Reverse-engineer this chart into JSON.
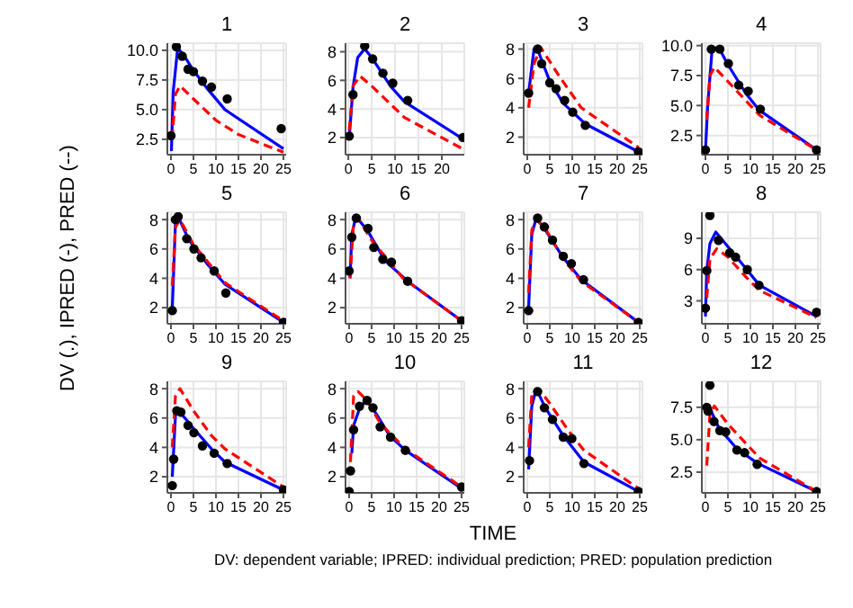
{
  "chart_data": [
    {
      "type": "line",
      "title": "1",
      "ylabel": "DV (.), IPRED (-), PRED (--)",
      "xlim": [
        -0.8,
        25.6
      ],
      "xticks": [
        0,
        5,
        10,
        15,
        20,
        25
      ],
      "ylim": [
        1.2,
        10.6
      ],
      "yticks": [
        {
          "value": 2.5,
          "label": "2.5"
        },
        {
          "value": 5,
          "label": "5.0"
        },
        {
          "value": 7.5,
          "label": "7.5"
        },
        {
          "value": 10,
          "label": "10.0"
        }
      ],
      "grid": true,
      "series": [
        {
          "type": "scatter",
          "color": "#000000",
          "marker": "circle",
          "x": [
            0,
            1.2,
            2.5,
            3.8,
            5,
            7,
            9,
            12.5,
            24.5
          ],
          "values": [
            2.8,
            10.3,
            9.5,
            8.4,
            8.2,
            7.4,
            6.9,
            5.9,
            3.4
          ]
        },
        {
          "color": "#0000ff",
          "line_style": "solid",
          "x": [
            0.1,
            0.5,
            1.5,
            3,
            5,
            8,
            12,
            25
          ],
          "values": [
            1.5,
            6.5,
            10.2,
            9.5,
            8.3,
            6.8,
            5.0,
            1.7
          ]
        },
        {
          "color": "#ff0000",
          "line_style": "dashed",
          "x": [
            0.25,
            1,
            2,
            5,
            10,
            15,
            25
          ],
          "values": [
            2.5,
            6.3,
            7.0,
            5.9,
            4.1,
            2.9,
            1.4
          ]
        }
      ]
    },
    {
      "type": "line",
      "title": "2",
      "xlim": [
        -0.6,
        24.8
      ],
      "xticks": [
        0,
        5,
        10,
        15,
        20
      ],
      "ylim": [
        0.8,
        8.6
      ],
      "yticks": [
        2,
        4,
        6,
        8
      ],
      "grid": true,
      "series": [
        {
          "type": "scatter",
          "color": "#000000",
          "marker": "circle",
          "x": [
            0.2,
            1,
            3.5,
            5.2,
            7.4,
            9.5,
            12.7,
            24.5
          ],
          "values": [
            2.1,
            5.0,
            8.4,
            7.5,
            6.5,
            5.8,
            4.6,
            2.0
          ]
        },
        {
          "color": "#0000ff",
          "line_style": "solid",
          "x": [
            0.2,
            1,
            2,
            3.5,
            5,
            9,
            12,
            24.5
          ],
          "values": [
            2.0,
            5.5,
            7.6,
            8.2,
            7.6,
            5.6,
            4.5,
            1.9
          ]
        },
        {
          "color": "#ff0000",
          "line_style": "dashed",
          "x": [
            0.2,
            1,
            2.5,
            5,
            12,
            24.5
          ],
          "values": [
            2.5,
            5.6,
            6.3,
            5.6,
            3.4,
            1.2
          ]
        }
      ]
    },
    {
      "type": "line",
      "title": "3",
      "xlim": [
        -0.8,
        25.6
      ],
      "xticks": [
        0,
        5,
        10,
        15,
        20,
        25
      ],
      "ylim": [
        0.8,
        8.4
      ],
      "yticks": [
        2,
        4,
        6,
        8
      ],
      "grid": true,
      "series": [
        {
          "type": "scatter",
          "color": "#000000",
          "marker": "circle",
          "x": [
            0.3,
            2.3,
            3.2,
            5,
            6.4,
            8.3,
            10.1,
            12.9,
            24.7
          ],
          "values": [
            5.0,
            8.0,
            7.0,
            5.7,
            5.3,
            4.5,
            3.7,
            2.8,
            1.0
          ]
        },
        {
          "color": "#0000ff",
          "line_style": "solid",
          "x": [
            0.3,
            1.5,
            2.5,
            5,
            8,
            12.9,
            24.7
          ],
          "values": [
            5.0,
            8.0,
            7.8,
            5.8,
            4.3,
            2.9,
            1.0
          ]
        },
        {
          "color": "#ff0000",
          "line_style": "dashed",
          "x": [
            0.3,
            1.5,
            3,
            7,
            12,
            24.7
          ],
          "values": [
            4.0,
            7.0,
            8.1,
            6.2,
            4.0,
            1.3
          ]
        }
      ]
    },
    {
      "type": "line",
      "title": "4",
      "xlim": [
        -0.8,
        25.6
      ],
      "xticks": [
        0,
        5,
        10,
        15,
        20,
        25
      ],
      "ylim": [
        0.9,
        10.2
      ],
      "yticks": [
        {
          "value": 2.5,
          "label": "2.5"
        },
        {
          "value": 5,
          "label": "5.0"
        },
        {
          "value": 7.5,
          "label": "7.5"
        },
        {
          "value": 10,
          "label": "10.0"
        }
      ],
      "grid": true,
      "series": [
        {
          "type": "scatter",
          "color": "#000000",
          "marker": "circle",
          "x": [
            0,
            1.3,
            3.2,
            5.1,
            7.4,
            9.5,
            12.2,
            24.7
          ],
          "values": [
            1.3,
            9.7,
            9.7,
            8.5,
            6.7,
            6.2,
            4.7,
            1.3
          ]
        },
        {
          "color": "#0000ff",
          "line_style": "solid",
          "x": [
            0,
            0.5,
            1.5,
            3,
            5,
            9,
            12,
            24.7
          ],
          "values": [
            1.2,
            5.0,
            9.8,
            9.8,
            8.4,
            6.0,
            4.6,
            1.3
          ]
        },
        {
          "color": "#ff0000",
          "line_style": "dashed",
          "x": [
            0.3,
            1,
            2,
            5,
            12,
            24.7
          ],
          "values": [
            3.8,
            7.5,
            8.2,
            7.0,
            4.2,
            1.3
          ]
        }
      ]
    },
    {
      "type": "line",
      "title": "5",
      "xlim": [
        -0.8,
        25.6
      ],
      "xticks": [
        0,
        5,
        10,
        15,
        20,
        25
      ],
      "ylim": [
        0.9,
        8.5
      ],
      "yticks": [
        2,
        4,
        6,
        8
      ],
      "grid": true,
      "series": [
        {
          "type": "scatter",
          "color": "#000000",
          "marker": "circle",
          "x": [
            0.3,
            1,
            1.6,
            3.5,
            5.1,
            6.7,
            9.6,
            12.2,
            25
          ],
          "values": [
            1.8,
            8.0,
            8.2,
            6.7,
            6.0,
            5.4,
            4.5,
            3.0,
            1.0
          ]
        },
        {
          "color": "#0000ff",
          "line_style": "solid",
          "x": [
            0.3,
            1,
            1.6,
            4,
            8,
            12,
            25
          ],
          "values": [
            2.0,
            7.8,
            8.2,
            6.6,
            5.0,
            3.6,
            1.0
          ]
        },
        {
          "color": "#ff0000",
          "line_style": "dashed",
          "x": [
            0.3,
            1,
            2,
            5,
            12,
            25
          ],
          "values": [
            3.5,
            7.5,
            8.0,
            6.3,
            3.7,
            1.1
          ]
        }
      ]
    },
    {
      "type": "line",
      "title": "6",
      "xlim": [
        -0.8,
        25.6
      ],
      "xticks": [
        0,
        5,
        10,
        15,
        20,
        25
      ],
      "ylim": [
        0.9,
        8.5
      ],
      "yticks": [
        2,
        4,
        6,
        8
      ],
      "grid": true,
      "series": [
        {
          "type": "scatter",
          "color": "#000000",
          "marker": "circle",
          "x": [
            0,
            0.6,
            1.6,
            4.2,
            5.5,
            7.5,
            9.4,
            13,
            25
          ],
          "values": [
            4.5,
            6.8,
            8.1,
            7.4,
            6.1,
            5.3,
            5.1,
            3.8,
            1.1
          ]
        },
        {
          "color": "#0000ff",
          "line_style": "solid",
          "x": [
            0.2,
            0.6,
            1.5,
            4,
            8,
            13,
            25
          ],
          "values": [
            4.0,
            7.0,
            8.2,
            7.3,
            5.2,
            3.8,
            1.1
          ]
        },
        {
          "color": "#ff0000",
          "line_style": "dashed",
          "x": [
            0.2,
            1,
            2,
            5,
            12,
            25
          ],
          "values": [
            4.0,
            7.8,
            8.1,
            6.6,
            4.0,
            1.1
          ]
        }
      ]
    },
    {
      "type": "line",
      "title": "7",
      "xlim": [
        -0.8,
        25.6
      ],
      "xticks": [
        0,
        5,
        10,
        15,
        20,
        25
      ],
      "ylim": [
        0.9,
        8.5
      ],
      "yticks": [
        2,
        4,
        6,
        8
      ],
      "grid": true,
      "series": [
        {
          "type": "scatter",
          "color": "#000000",
          "marker": "circle",
          "x": [
            0.3,
            2.3,
            3.8,
            5.6,
            8,
            9.8,
            12.5,
            24.7
          ],
          "values": [
            1.8,
            8.1,
            7.5,
            6.6,
            5.5,
            5.0,
            3.9,
            1.0
          ]
        },
        {
          "color": "#0000ff",
          "line_style": "solid",
          "x": [
            0.3,
            1,
            2,
            4,
            8,
            12,
            24.7
          ],
          "values": [
            2.0,
            7.0,
            8.1,
            7.3,
            5.4,
            3.9,
            1.0
          ]
        },
        {
          "color": "#ff0000",
          "line_style": "dashed",
          "x": [
            0.3,
            1,
            2,
            4,
            8,
            12,
            24.7
          ],
          "values": [
            3.0,
            7.3,
            8.0,
            7.4,
            5.3,
            3.8,
            1.0
          ]
        }
      ]
    },
    {
      "type": "line",
      "title": "8",
      "xlim": [
        -0.8,
        25.6
      ],
      "xticks": [
        0,
        5,
        10,
        15,
        20,
        25
      ],
      "ylim": [
        0.8,
        11.5
      ],
      "yticks": [
        3,
        6,
        9
      ],
      "grid": true,
      "series": [
        {
          "type": "scatter",
          "color": "#000000",
          "marker": "circle",
          "x": [
            0,
            0.3,
            1,
            2.9,
            5.4,
            6.7,
            9.3,
            11.9,
            24.7
          ],
          "values": [
            2.3,
            5.9,
            11.2,
            8.8,
            7.6,
            7.2,
            6.0,
            4.5,
            1.9
          ]
        },
        {
          "color": "#0000ff",
          "line_style": "solid",
          "x": [
            0,
            0.3,
            1,
            2.3,
            5,
            9,
            12,
            24.7
          ],
          "values": [
            1.5,
            5.9,
            8.5,
            9.6,
            8.2,
            6.1,
            4.5,
            1.5
          ]
        },
        {
          "color": "#ff0000",
          "line_style": "dashed",
          "x": [
            0.3,
            1,
            2.5,
            5,
            9,
            12,
            24.7
          ],
          "values": [
            3.3,
            7.0,
            8.0,
            7.2,
            5.3,
            4.0,
            1.4
          ]
        }
      ]
    },
    {
      "type": "line",
      "title": "9",
      "xlim": [
        -0.8,
        25.6
      ],
      "xticks": [
        0,
        5,
        10,
        15,
        20,
        25
      ],
      "ylim": [
        0.9,
        8.5
      ],
      "yticks": [
        2,
        4,
        6,
        8
      ],
      "grid": true,
      "series": [
        {
          "type": "scatter",
          "color": "#000000",
          "marker": "circle",
          "x": [
            0.3,
            0.6,
            1.3,
            2.2,
            3.8,
            5.1,
            7,
            9.6,
            12.5,
            25
          ],
          "values": [
            1.4,
            3.2,
            6.5,
            6.4,
            5.5,
            5.0,
            4.1,
            3.6,
            2.9,
            1.1
          ]
        },
        {
          "color": "#0000ff",
          "line_style": "solid",
          "x": [
            0.3,
            1,
            2,
            5,
            9,
            12,
            25
          ],
          "values": [
            2.0,
            6.2,
            6.4,
            5.3,
            3.9,
            3.0,
            1.1
          ]
        },
        {
          "color": "#ff0000",
          "line_style": "dashed",
          "x": [
            0.3,
            1,
            2,
            5,
            9,
            12,
            25
          ],
          "values": [
            4.0,
            7.5,
            8.0,
            6.5,
            4.8,
            3.9,
            1.3
          ]
        }
      ]
    },
    {
      "type": "line",
      "title": "10",
      "xlim": [
        -0.8,
        25.6
      ],
      "xticks": [
        0,
        5,
        10,
        15,
        20,
        25
      ],
      "ylim": [
        0.9,
        8.5
      ],
      "yticks": [
        2,
        4,
        6,
        8
      ],
      "grid": true,
      "series": [
        {
          "type": "scatter",
          "color": "#000000",
          "marker": "circle",
          "x": [
            0,
            0.3,
            1,
            2.3,
            4,
            5.3,
            6.9,
            9.2,
            12.5,
            25
          ],
          "values": [
            1.0,
            2.4,
            5.2,
            6.8,
            7.2,
            6.7,
            5.4,
            4.7,
            3.8,
            1.3
          ]
        },
        {
          "color": "#0000ff",
          "line_style": "solid",
          "x": [
            0.6,
            1,
            2.5,
            4,
            6,
            9,
            12.5,
            25
          ],
          "values": [
            3.6,
            5.5,
            6.8,
            7.2,
            6.3,
            4.8,
            3.8,
            1.2
          ]
        },
        {
          "color": "#ff0000",
          "line_style": "dashed",
          "x": [
            0.3,
            1,
            2,
            4,
            7,
            12.5,
            25
          ],
          "values": [
            3.0,
            7.5,
            7.8,
            7.2,
            5.6,
            3.9,
            1.3
          ]
        }
      ]
    },
    {
      "type": "line",
      "title": "11",
      "xlabel": "TIME",
      "xlim": [
        -0.8,
        25.6
      ],
      "xticks": [
        0,
        5,
        10,
        15,
        20,
        25
      ],
      "ylim": [
        0.9,
        8.5
      ],
      "yticks": [
        2,
        4,
        6,
        8
      ],
      "grid": true,
      "series": [
        {
          "type": "scatter",
          "color": "#000000",
          "marker": "circle",
          "x": [
            0.5,
            2.3,
            3.8,
            5.6,
            8,
            9.9,
            12.6,
            24.7
          ],
          "values": [
            3.1,
            7.8,
            6.7,
            5.9,
            4.7,
            4.6,
            2.9,
            1.0
          ]
        },
        {
          "color": "#0000ff",
          "line_style": "solid",
          "x": [
            0.3,
            1,
            2,
            4,
            8,
            12.6,
            24.7
          ],
          "values": [
            2.5,
            6.8,
            8.0,
            6.7,
            4.8,
            3.0,
            1.0
          ]
        },
        {
          "color": "#ff0000",
          "line_style": "dashed",
          "x": [
            0.3,
            1,
            2.5,
            5,
            9,
            12.6,
            24.7
          ],
          "values": [
            4.0,
            7.6,
            8.0,
            7.0,
            5.2,
            3.8,
            1.2
          ]
        }
      ]
    },
    {
      "type": "line",
      "title": "12",
      "annotations": [
        "DV: dependent variable; IPRED: individual prediction; PRED: population prediction"
      ],
      "xlim": [
        -0.8,
        25.6
      ],
      "xticks": [
        0,
        5,
        10,
        15,
        20,
        25
      ],
      "ylim": [
        0.9,
        9.5
      ],
      "yticks": [
        {
          "value": 2.5,
          "label": "2.5"
        },
        {
          "value": 5,
          "label": "5.0"
        },
        {
          "value": 7.5,
          "label": "7.5"
        }
      ],
      "grid": true,
      "series": [
        {
          "type": "scatter",
          "color": "#000000",
          "marker": "circle",
          "x": [
            0.3,
            0.6,
            1,
            1.9,
            3.2,
            4.5,
            7,
            8.7,
            11.5,
            24.7
          ],
          "values": [
            7.5,
            7.2,
            9.2,
            6.4,
            5.7,
            5.6,
            4.2,
            4.0,
            3.1,
            1.0
          ]
        },
        {
          "color": "#0000ff",
          "line_style": "solid",
          "x": [
            0.2,
            1,
            3,
            7,
            11.5,
            24.7
          ],
          "values": [
            7.4,
            7.4,
            5.9,
            4.3,
            3.2,
            1.0
          ]
        },
        {
          "color": "#ff0000",
          "line_style": "dashed",
          "x": [
            0.3,
            1,
            2,
            5,
            12,
            24.7
          ],
          "values": [
            3.0,
            7.0,
            7.6,
            6.2,
            3.6,
            1.0
          ]
        }
      ]
    }
  ]
}
